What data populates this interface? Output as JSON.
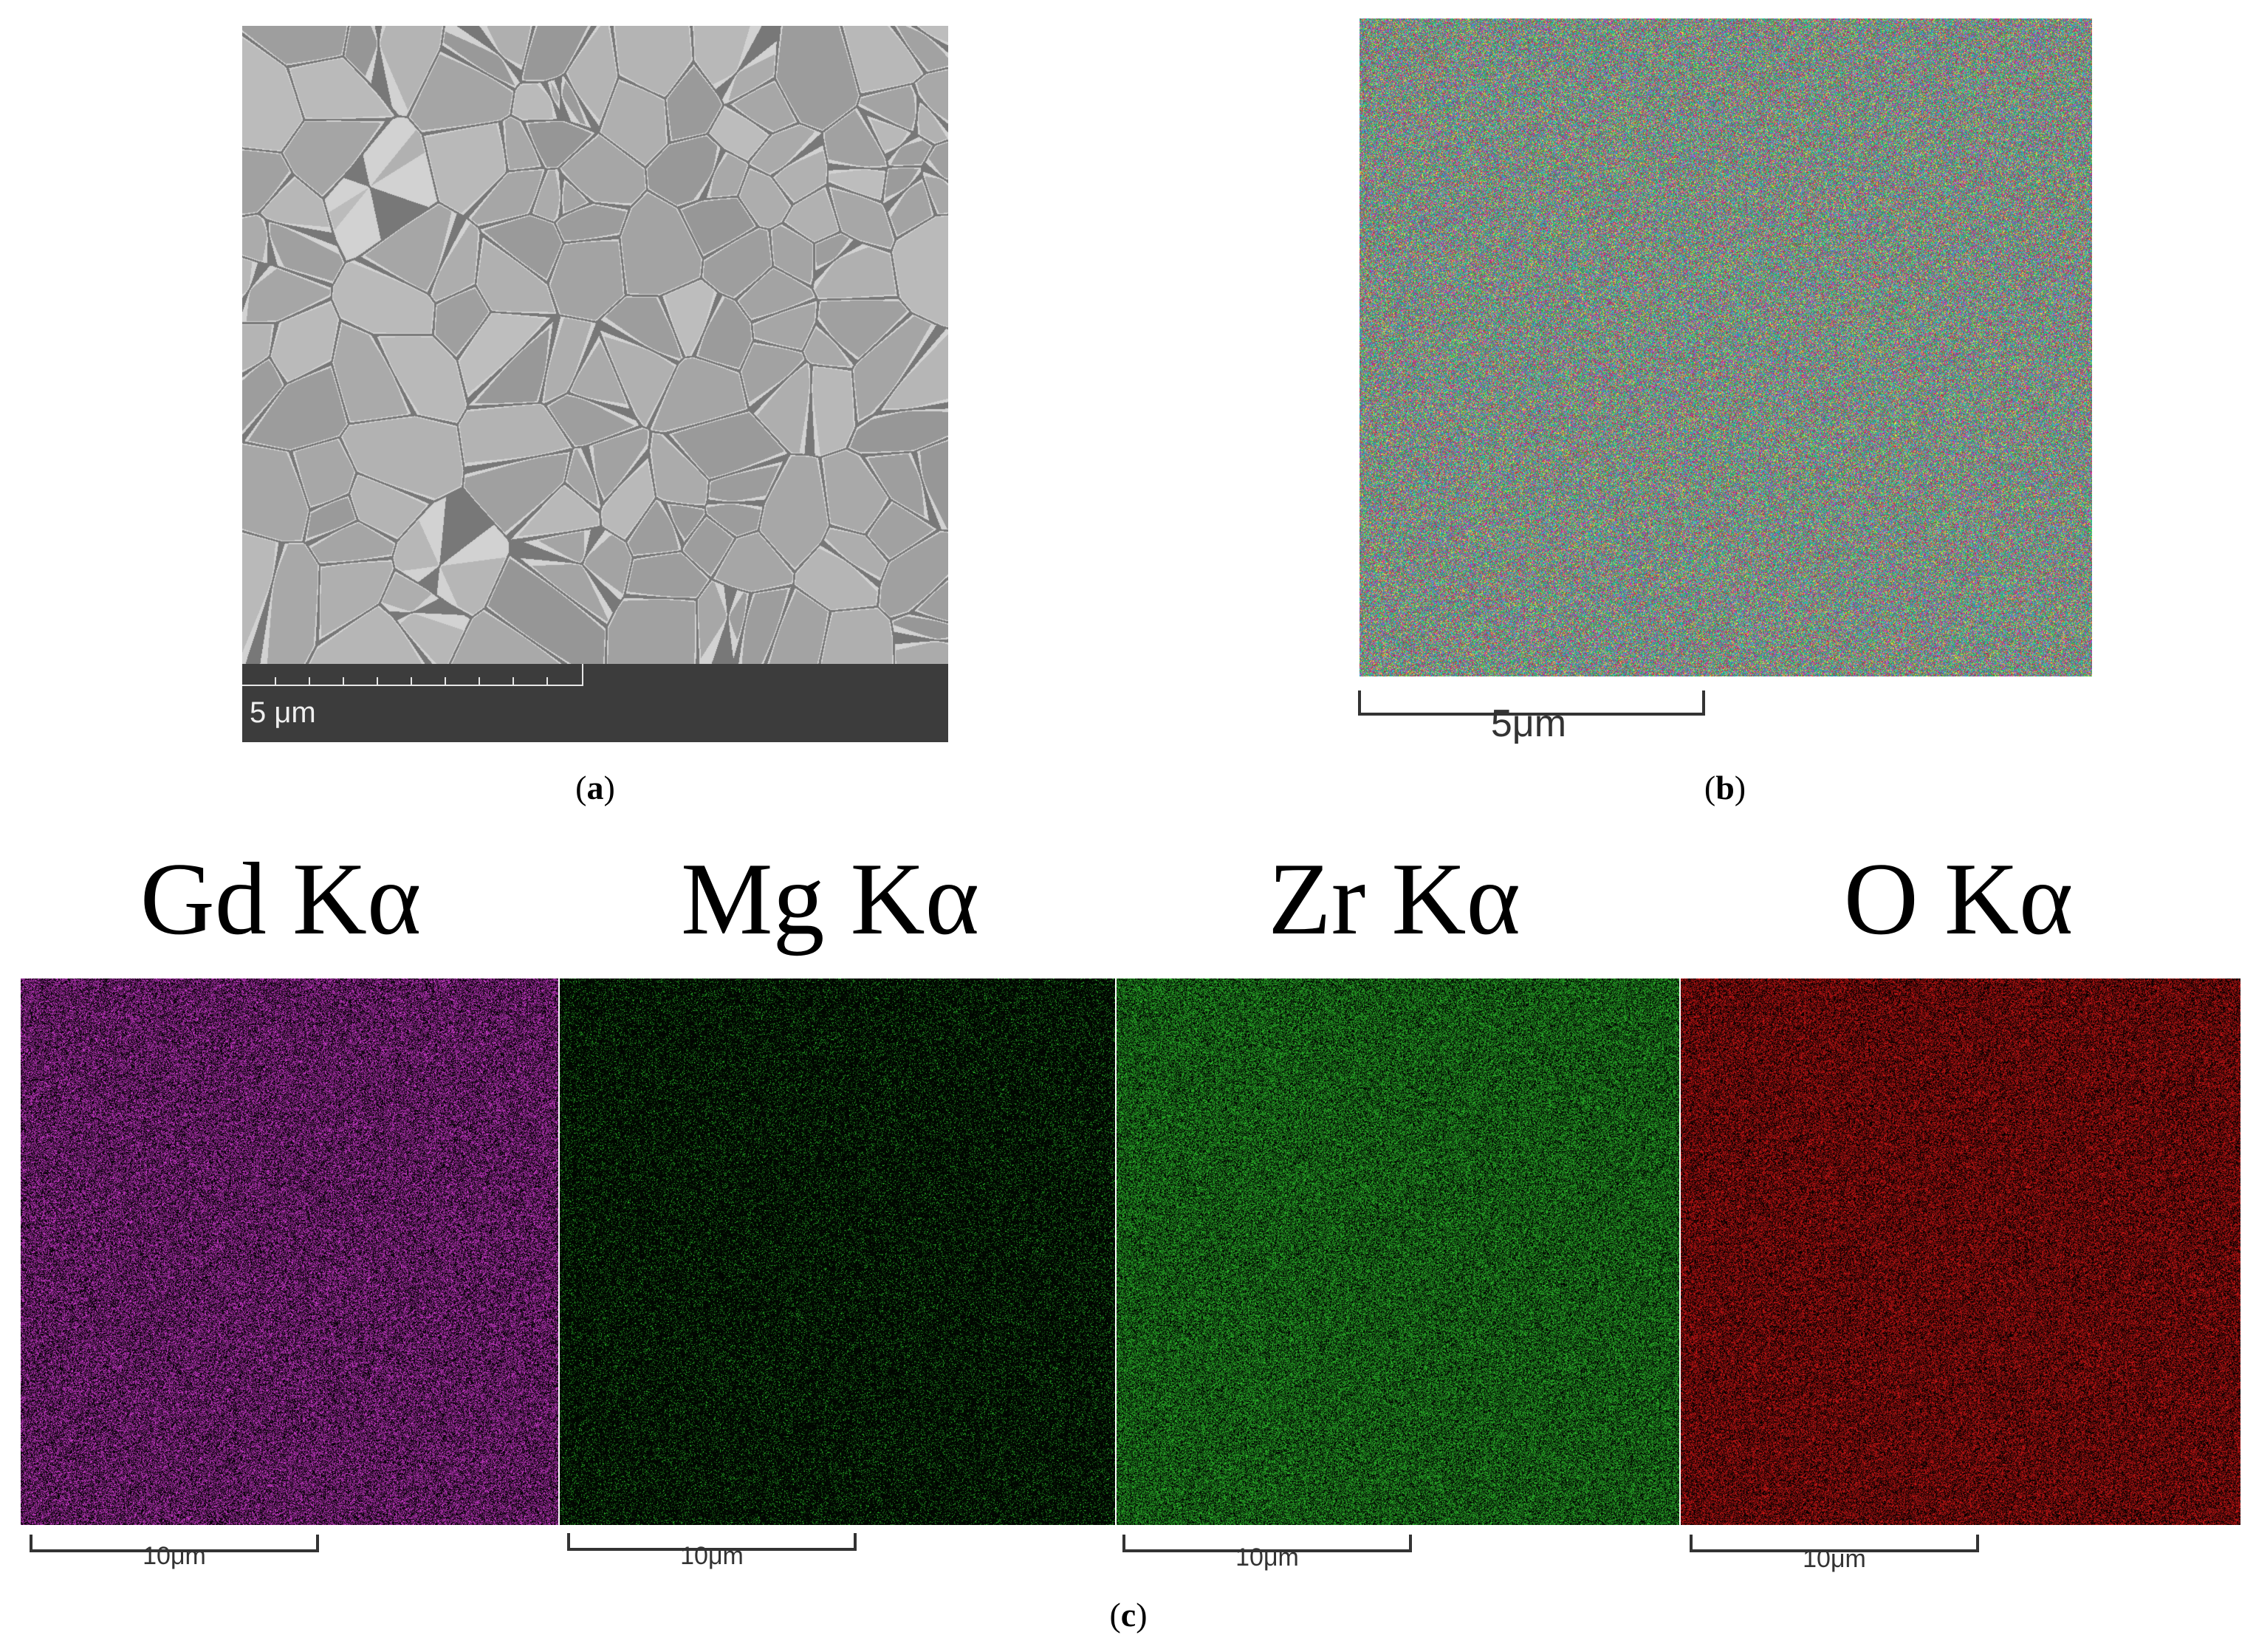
{
  "panel_a": {
    "scale_label": "5 μm",
    "caption_open": "(",
    "caption_letter": "a",
    "caption_close": ")"
  },
  "panel_b": {
    "scale_label": "5μm",
    "caption_open": "(",
    "caption_letter": "b",
    "caption_close": ")"
  },
  "panel_c": {
    "caption_open": "(",
    "caption_letter": "c",
    "caption_close": ")",
    "maps": [
      {
        "title": "Gd Kα",
        "scale_label": "10μm",
        "color": "#e040e0"
      },
      {
        "title": "Mg Kα",
        "scale_label": "10μm",
        "color": "#30d030"
      },
      {
        "title": "Zr Kα",
        "scale_label": "10μm",
        "color": "#30c830"
      },
      {
        "title": "O Kα",
        "scale_label": "10μm",
        "color": "#e01818"
      }
    ]
  },
  "colors": {
    "sem_background": "#b0b0b0",
    "sem_databar": "#3c3c3c",
    "overlay_palette": [
      "#20d0b0",
      "#30c850",
      "#e03050",
      "#d040d0",
      "#40a0e0",
      "#e0e040"
    ]
  }
}
